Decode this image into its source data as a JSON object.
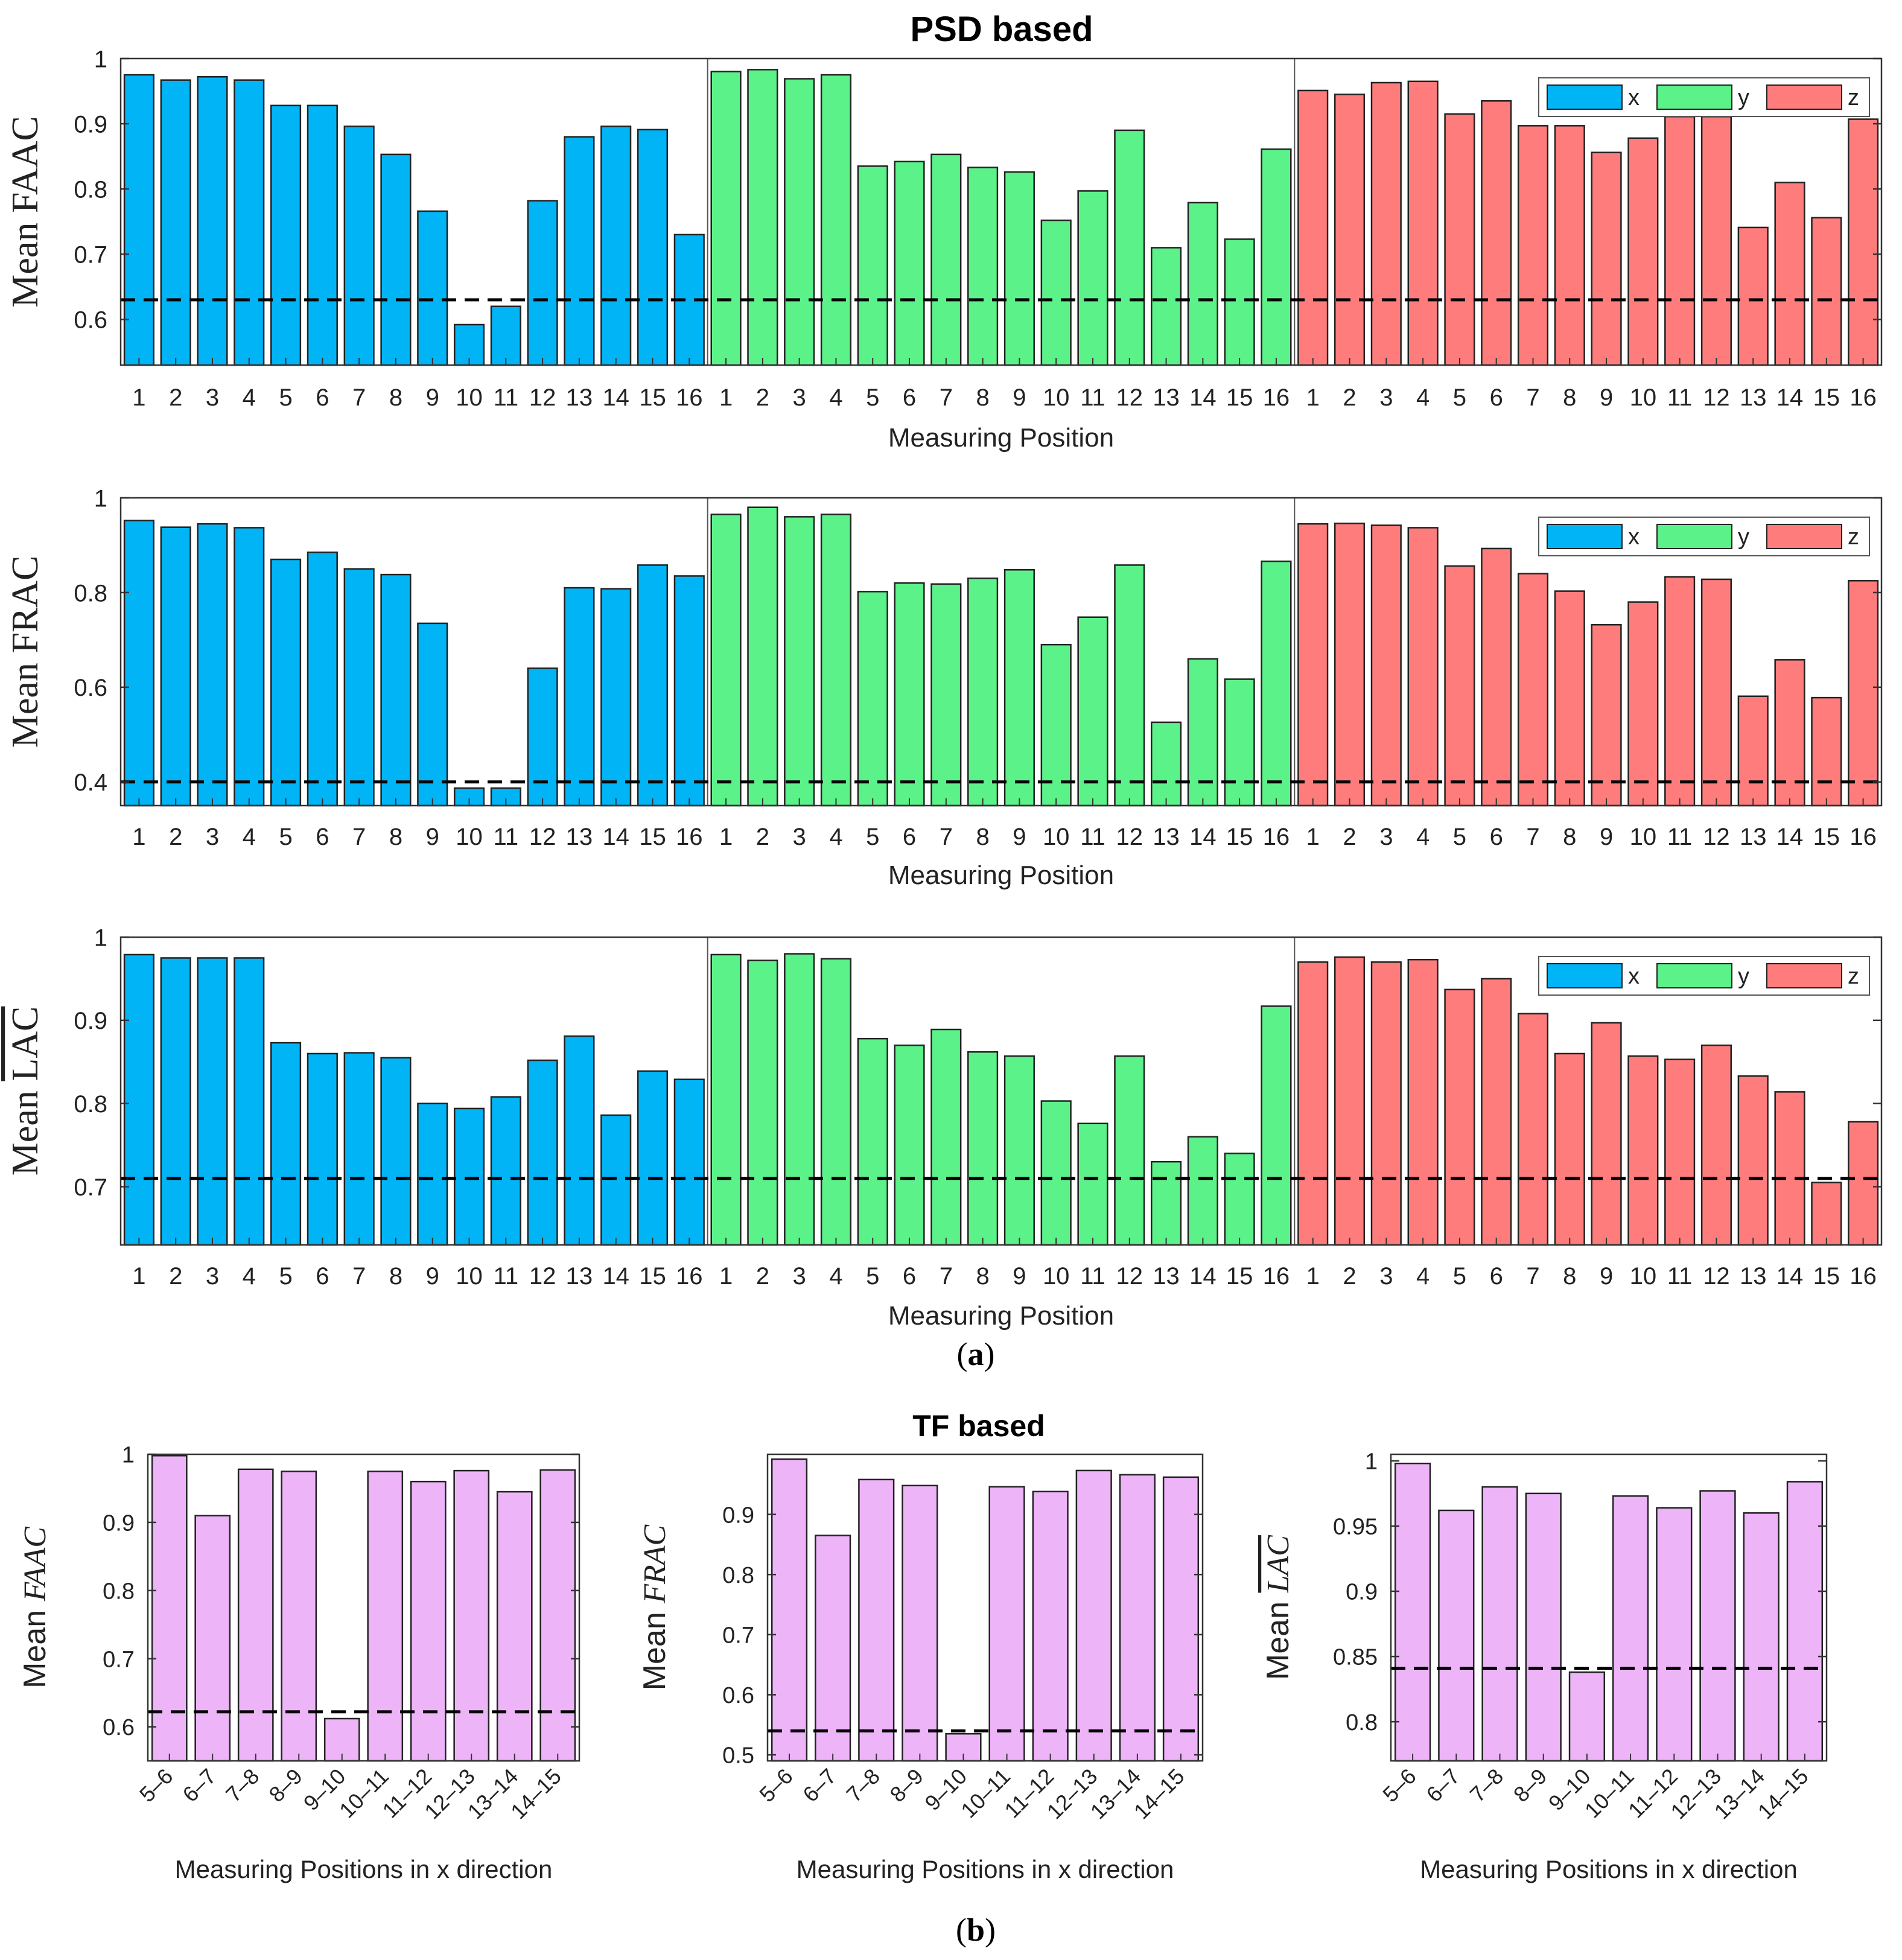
{
  "figure": {
    "title_a": "PSD based",
    "title_b": "TF based",
    "caption_a_open": "(",
    "caption_a_letter": "a",
    "caption_a_close": ")",
    "caption_b_open": "(",
    "caption_b_letter": "b",
    "caption_b_close": ")"
  },
  "colors": {
    "x": "#00b4f5",
    "y": "#5cf28a",
    "z": "#ff7c7c",
    "tf": "#eeb4f8"
  },
  "chart_data": [
    {
      "type": "bar",
      "title": "PSD based",
      "ylabel_prefix": "Mean ",
      "ylabel_symbol": "FAAC",
      "ylabel_overline": false,
      "xlabel": "Measuring Position",
      "ylim": [
        0.53,
        1.0
      ],
      "yticks": [
        0.6,
        0.7,
        0.8,
        0.9,
        1
      ],
      "ytick_labels": [
        "0.6",
        "0.7",
        "0.8",
        "0.9",
        "1"
      ],
      "threshold": 0.63,
      "categories": [
        "1",
        "2",
        "3",
        "4",
        "5",
        "6",
        "7",
        "8",
        "9",
        "10",
        "11",
        "12",
        "13",
        "14",
        "15",
        "16"
      ],
      "legend": [
        "x",
        "y",
        "z"
      ],
      "legend_position": "top-right",
      "series": [
        {
          "name": "x",
          "values": [
            0.975,
            0.967,
            0.972,
            0.967,
            0.928,
            0.928,
            0.896,
            0.853,
            0.766,
            0.592,
            0.62,
            0.782,
            0.88,
            0.896,
            0.891,
            0.73
          ]
        },
        {
          "name": "y",
          "values": [
            0.98,
            0.983,
            0.969,
            0.975,
            0.835,
            0.842,
            0.853,
            0.833,
            0.826,
            0.752,
            0.797,
            0.89,
            0.71,
            0.779,
            0.723,
            0.861
          ]
        },
        {
          "name": "z",
          "values": [
            0.951,
            0.945,
            0.963,
            0.965,
            0.915,
            0.935,
            0.897,
            0.897,
            0.856,
            0.878,
            0.911,
            0.911,
            0.741,
            0.81,
            0.756,
            0.907
          ]
        }
      ]
    },
    {
      "type": "bar",
      "ylabel_prefix": "Mean ",
      "ylabel_symbol": "FRAC",
      "ylabel_overline": false,
      "xlabel": "Measuring Position",
      "ylim": [
        0.35,
        1.0
      ],
      "yticks": [
        0.4,
        0.6,
        0.8,
        1
      ],
      "ytick_labels": [
        "0.4",
        "0.6",
        "0.8",
        "1"
      ],
      "threshold": 0.4,
      "categories": [
        "1",
        "2",
        "3",
        "4",
        "5",
        "6",
        "7",
        "8",
        "9",
        "10",
        "11",
        "12",
        "13",
        "14",
        "15",
        "16"
      ],
      "legend": [
        "x",
        "y",
        "z"
      ],
      "legend_position": "top-right",
      "series": [
        {
          "name": "x",
          "values": [
            0.952,
            0.938,
            0.945,
            0.937,
            0.87,
            0.885,
            0.85,
            0.838,
            0.735,
            0.387,
            0.387,
            0.64,
            0.81,
            0.808,
            0.858,
            0.835
          ]
        },
        {
          "name": "y",
          "values": [
            0.965,
            0.98,
            0.96,
            0.965,
            0.802,
            0.82,
            0.818,
            0.83,
            0.848,
            0.69,
            0.748,
            0.858,
            0.526,
            0.66,
            0.617,
            0.866
          ]
        },
        {
          "name": "z",
          "values": [
            0.945,
            0.946,
            0.942,
            0.937,
            0.856,
            0.893,
            0.84,
            0.803,
            0.732,
            0.78,
            0.833,
            0.828,
            0.581,
            0.658,
            0.578,
            0.825
          ]
        }
      ]
    },
    {
      "type": "bar",
      "ylabel_prefix": "Mean ",
      "ylabel_symbol": "LAC",
      "ylabel_overline": true,
      "xlabel": "Measuring Position",
      "ylim": [
        0.63,
        1.0
      ],
      "yticks": [
        0.7,
        0.8,
        0.9,
        1
      ],
      "ytick_labels": [
        "0.7",
        "0.8",
        "0.9",
        "1"
      ],
      "threshold": 0.71,
      "categories": [
        "1",
        "2",
        "3",
        "4",
        "5",
        "6",
        "7",
        "8",
        "9",
        "10",
        "11",
        "12",
        "13",
        "14",
        "15",
        "16"
      ],
      "legend": [
        "x",
        "y",
        "z"
      ],
      "legend_position": "top-right",
      "series": [
        {
          "name": "x",
          "values": [
            0.979,
            0.975,
            0.975,
            0.975,
            0.873,
            0.86,
            0.861,
            0.855,
            0.8,
            0.794,
            0.808,
            0.852,
            0.881,
            0.786,
            0.839,
            0.829
          ]
        },
        {
          "name": "y",
          "values": [
            0.979,
            0.972,
            0.98,
            0.974,
            0.878,
            0.87,
            0.889,
            0.862,
            0.857,
            0.803,
            0.776,
            0.857,
            0.73,
            0.76,
            0.74,
            0.917
          ]
        },
        {
          "name": "z",
          "values": [
            0.97,
            0.976,
            0.97,
            0.973,
            0.937,
            0.95,
            0.908,
            0.86,
            0.897,
            0.857,
            0.853,
            0.87,
            0.833,
            0.814,
            0.705,
            0.778
          ]
        }
      ]
    },
    {
      "type": "bar",
      "title": "TF based",
      "ylabel_prefix": "Mean ",
      "ylabel_symbol": "FAAC",
      "ylabel_overline": false,
      "xlabel": "Measuring Positions in x direction",
      "ylim": [
        0.55,
        1.0
      ],
      "yticks": [
        0.6,
        0.7,
        0.8,
        0.9,
        1
      ],
      "ytick_labels": [
        "0.6",
        "0.7",
        "0.8",
        "0.9",
        "1"
      ],
      "threshold": 0.622,
      "categories": [
        "5–6",
        "6–7",
        "7–8",
        "8–9",
        "9–10",
        "10–11",
        "11–12",
        "12–13",
        "13–14",
        "14–15"
      ],
      "values": [
        0.998,
        0.91,
        0.978,
        0.975,
        0.612,
        0.975,
        0.96,
        0.976,
        0.945,
        0.977
      ]
    },
    {
      "type": "bar",
      "ylabel_prefix": "Mean ",
      "ylabel_symbol": "FRAC",
      "ylabel_overline": false,
      "xlabel": "Measuring Positions in x direction",
      "ylim": [
        0.49,
        1.0
      ],
      "yticks": [
        0.5,
        0.6,
        0.7,
        0.8,
        0.9
      ],
      "ytick_labels": [
        "0.5",
        "0.6",
        "0.7",
        "0.8",
        "0.9"
      ],
      "threshold": 0.54,
      "categories": [
        "5–6",
        "6–7",
        "7–8",
        "8–9",
        "9–10",
        "10–11",
        "11–12",
        "12–13",
        "13–14",
        "14–15"
      ],
      "values": [
        0.992,
        0.865,
        0.958,
        0.948,
        0.535,
        0.946,
        0.938,
        0.973,
        0.966,
        0.962
      ]
    },
    {
      "type": "bar",
      "ylabel_prefix": "Mean ",
      "ylabel_symbol": "LAC",
      "ylabel_overline": true,
      "xlabel": "Measuring Positions in x direction",
      "ylim": [
        0.77,
        1.005
      ],
      "yticks": [
        0.8,
        0.85,
        0.9,
        0.95,
        1
      ],
      "ytick_labels": [
        "0.8",
        "0.85",
        "0.9",
        "0.95",
        "1"
      ],
      "threshold": 0.841,
      "categories": [
        "5–6",
        "6–7",
        "7–8",
        "8–9",
        "9–10",
        "10–11",
        "11–12",
        "12–13",
        "13–14",
        "14–15"
      ],
      "values": [
        0.998,
        0.962,
        0.98,
        0.975,
        0.838,
        0.973,
        0.964,
        0.977,
        0.96,
        0.984
      ]
    }
  ]
}
